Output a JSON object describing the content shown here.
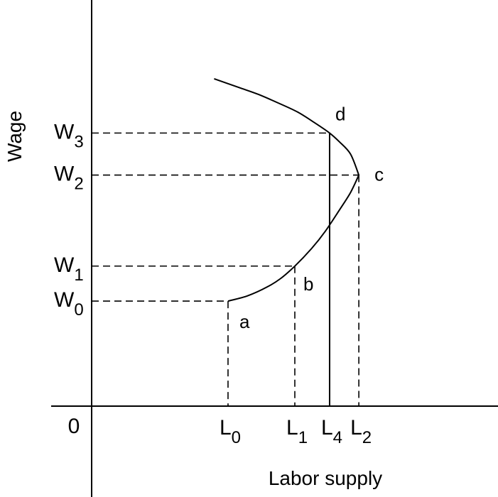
{
  "chart_data": {
    "type": "line",
    "title": "",
    "xlabel": "Labor supply",
    "ylabel": "Wage",
    "origin_label": "0",
    "x_tick_labels": [
      {
        "id": "L0",
        "base": "L",
        "sub": "0",
        "value": 0.49
      },
      {
        "id": "L1",
        "base": "L",
        "sub": "1",
        "value": 0.73
      },
      {
        "id": "L4",
        "base": "L",
        "sub": "4",
        "value": 0.855
      },
      {
        "id": "L2",
        "base": "L",
        "sub": "2",
        "value": 0.96
      }
    ],
    "y_tick_labels": [
      {
        "id": "W0",
        "base": "W",
        "sub": "0",
        "value": 0.3
      },
      {
        "id": "W1",
        "base": "W",
        "sub": "1",
        "value": 0.4
      },
      {
        "id": "W2",
        "base": "W",
        "sub": "2",
        "value": 0.66
      },
      {
        "id": "W3",
        "base": "W",
        "sub": "3",
        "value": 0.78
      }
    ],
    "points": [
      {
        "label": "a",
        "x": 0.49,
        "y": 0.3
      },
      {
        "label": "b",
        "x": 0.73,
        "y": 0.4
      },
      {
        "label": "c",
        "x": 0.96,
        "y": 0.66
      },
      {
        "label": "d",
        "x": 0.855,
        "y": 0.78
      }
    ],
    "series": [
      {
        "x": [
          0.49,
          0.56,
          0.63,
          0.68,
          0.73,
          0.79,
          0.84,
          0.89,
          0.93,
          0.96,
          0.93,
          0.89,
          0.855,
          0.8,
          0.74,
          0.67,
          0.6,
          0.53,
          0.44
        ],
        "y": [
          0.3,
          0.315,
          0.34,
          0.365,
          0.4,
          0.45,
          0.5,
          0.56,
          0.61,
          0.66,
          0.72,
          0.755,
          0.78,
          0.81,
          0.84,
          0.866,
          0.89,
          0.91,
          0.935
        ]
      }
    ],
    "dashed_to_axes": [
      "a",
      "b",
      "c",
      "d"
    ],
    "solid_vertical": "L4",
    "xlim": [
      0,
      1.46
    ],
    "ylim": [
      0,
      1.16
    ],
    "grid": false,
    "legend": "none"
  }
}
